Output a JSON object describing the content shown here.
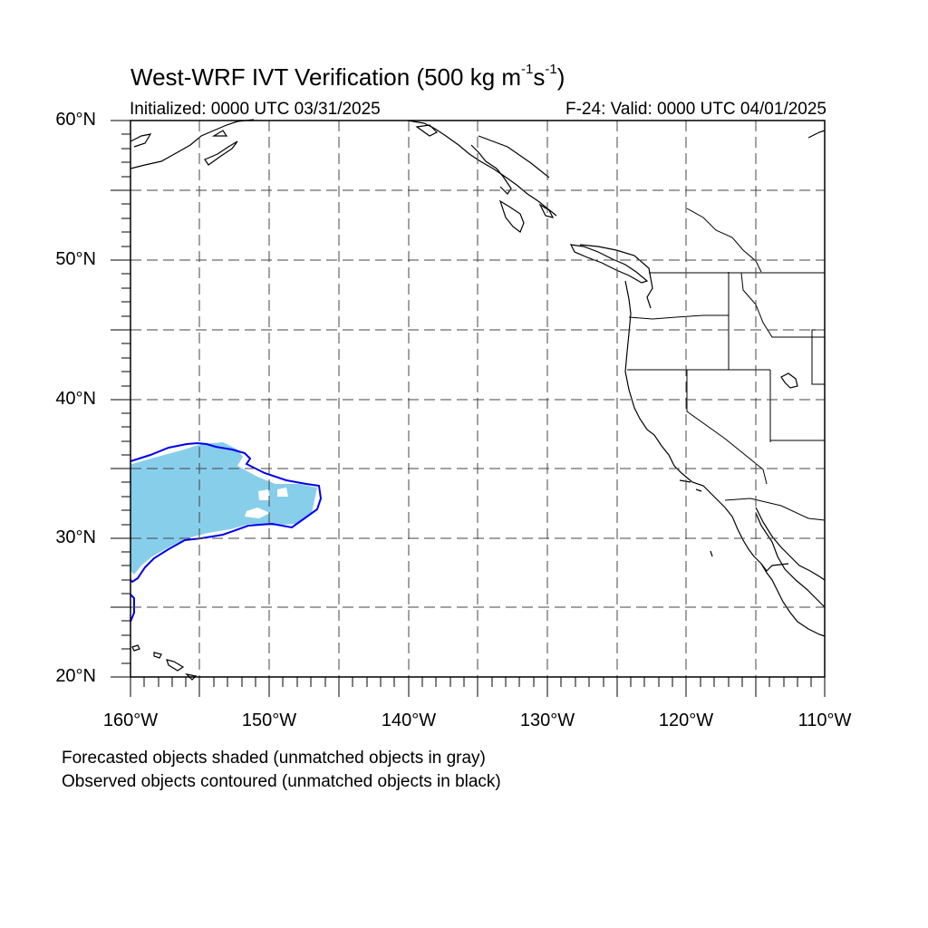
{
  "title": {
    "main": "West-WRF IVT Verification (500 kg m",
    "exp1": "-1",
    "mid": "s",
    "exp2": "-1",
    "close": ")"
  },
  "subtitle": {
    "initialized": "Initialized: 0000 UTC 03/31/2025",
    "valid": "F-24: Valid: 0000 UTC 04/01/2025"
  },
  "map": {
    "lat_range": [
      20,
      60
    ],
    "lon_range": [
      -160,
      -110
    ],
    "gridlines": "dashed every 5 degrees",
    "lat_labels": [
      "60°N",
      "50°N",
      "40°N",
      "30°N",
      "20°N"
    ],
    "lon_labels": [
      "160°W",
      "150°W",
      "140°W",
      "130°W",
      "120°W",
      "110°W"
    ],
    "colors": {
      "forecast_object": "#87ceeb",
      "observed_contour": "#0000ee",
      "coastline": "#000000",
      "grid": "#555555"
    }
  },
  "notes": {
    "forecast": "Forecasted objects shaded (unmatched objects in gray)",
    "observed": "Observed objects contoured (unmatched objects in black)"
  }
}
